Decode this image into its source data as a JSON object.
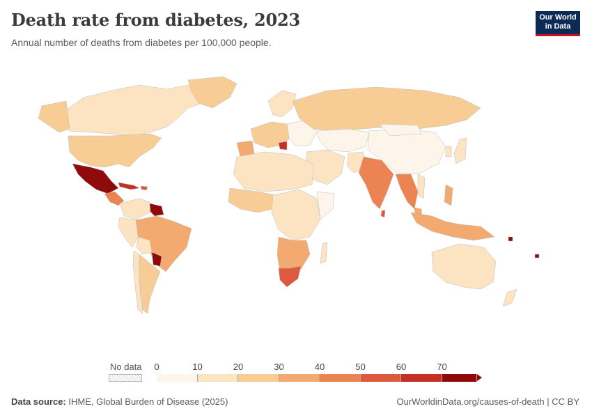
{
  "header": {
    "title": "Death rate from diabetes, 2023",
    "subtitle": "Annual number of deaths from diabetes per 100,000 people."
  },
  "logo": {
    "line1": "Our World",
    "line2": "in Data"
  },
  "legend": {
    "no_data_label": "No data",
    "ticks": [
      "0",
      "10",
      "20",
      "30",
      "40",
      "50",
      "60",
      "70"
    ],
    "colors": [
      "#fef5ea",
      "#fce3c2",
      "#f8cc95",
      "#f3aa70",
      "#ec8353",
      "#dd5a3f",
      "#c53024",
      "#8f0b0b"
    ]
  },
  "footer": {
    "source_label": "Data source:",
    "source_text": "IHME, Global Burden of Disease (2025)",
    "url": "OurWorldinData.org/causes-of-death | CC BY"
  }
}
